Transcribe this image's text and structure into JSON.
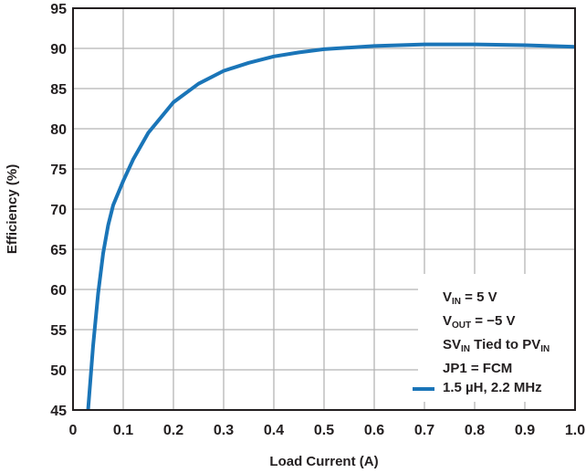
{
  "chart_data": {
    "type": "line",
    "title": "",
    "xlabel": "Load Current (A)",
    "ylabel": "Efficiency (%)",
    "xlim": [
      0,
      1.0
    ],
    "ylim": [
      45,
      95
    ],
    "xticks": [
      "0",
      "0.1",
      "0.2",
      "0.3",
      "0.4",
      "0.5",
      "0.6",
      "0.7",
      "0.8",
      "0.9",
      "1.0"
    ],
    "yticks": [
      "45",
      "50",
      "55",
      "60",
      "65",
      "70",
      "75",
      "80",
      "85",
      "90",
      "95"
    ],
    "grid": true,
    "legend_position": "bottom-right",
    "conditions": [
      {
        "main": "V",
        "sub": "IN",
        "rest": " = 5 V"
      },
      {
        "main": "V",
        "sub": "OUT",
        "rest": " = −5 V"
      },
      {
        "main": "SV",
        "sub": "IN",
        "rest": " Tied to PV",
        "sub2": "IN"
      },
      {
        "main": "JP1 = FCM"
      }
    ],
    "series": [
      {
        "name": "1.5 µH, 2.2 MHz",
        "color": "#1a75b8",
        "x": [
          0.03,
          0.04,
          0.05,
          0.06,
          0.07,
          0.08,
          0.1,
          0.12,
          0.15,
          0.2,
          0.25,
          0.3,
          0.35,
          0.4,
          0.45,
          0.5,
          0.6,
          0.7,
          0.8,
          0.9,
          1.0
        ],
        "y": [
          45,
          53,
          59.5,
          64.5,
          68,
          70.5,
          73.5,
          76.2,
          79.5,
          83.3,
          85.6,
          87.2,
          88.2,
          89.0,
          89.5,
          89.9,
          90.3,
          90.5,
          90.5,
          90.4,
          90.2
        ]
      }
    ]
  }
}
